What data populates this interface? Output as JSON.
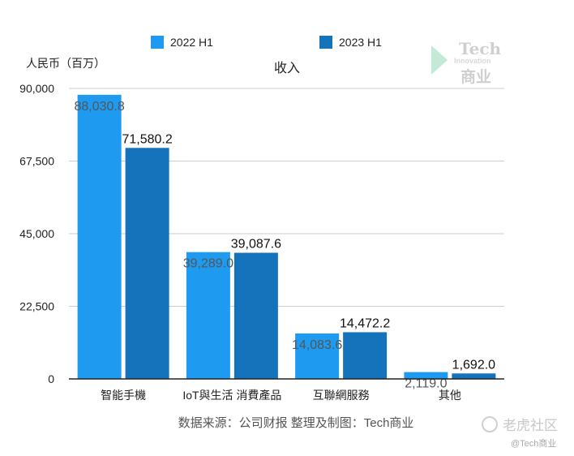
{
  "chart_data": {
    "type": "bar",
    "title": "收入",
    "ylabel": "人民币（百万）",
    "categories": [
      "智能手機",
      "IoT與生活 消費產品",
      "互聯網服務",
      "其他"
    ],
    "series": [
      {
        "name": "2022 H1",
        "color": "#1e9bf0",
        "values": [
          88030.8,
          39289.0,
          14083.6,
          2119.0
        ],
        "labels": [
          "88,030.8",
          "39,289.0",
          "14,083.6",
          "2,119.0"
        ]
      },
      {
        "name": "2023 H1",
        "color": "#1573bb",
        "values": [
          71580.2,
          39087.6,
          14472.2,
          1692.0
        ],
        "labels": [
          "71,580.2",
          "39,087.6",
          "14,472.2",
          "1,692.0"
        ]
      }
    ],
    "ylim": [
      0,
      90000
    ],
    "yticks": [
      0,
      22500,
      45000,
      67500,
      90000
    ],
    "ytick_labels": [
      "0",
      "22,500",
      "45,000",
      "67,500",
      "90,000"
    ],
    "grid": true,
    "legend": "top"
  },
  "source_note": "数据来源：公司财报 整理及制图：Tech商业",
  "logo": {
    "line1": "Tech",
    "line2": "Innovation",
    "line3": "商业",
    "accent": "#2bb673"
  },
  "watermark": {
    "text": "老虎社区",
    "handle": "@Tech商业"
  }
}
